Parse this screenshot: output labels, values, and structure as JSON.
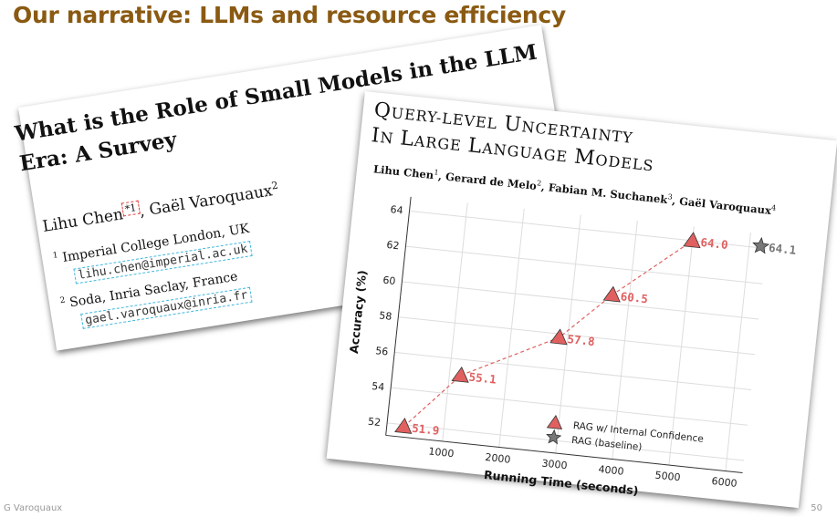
{
  "slide": {
    "title": "Our narrative: LLMs and resource efficiency",
    "footer_author": "G Varoquaux",
    "page_number": "50"
  },
  "paper1": {
    "title_line1": "What is the Role of Small Models in the LLM",
    "title_line2": "Era: A Survey",
    "author1": "Lihu Chen",
    "author1_mark": "*1",
    "author2": ", Gaël Varoquaux",
    "author2_mark": "2",
    "affiliations": [
      {
        "mark": "1",
        "name": "Imperial College London, UK",
        "email": "lihu.chen@imperial.ac.uk"
      },
      {
        "mark": "2",
        "name": "Soda, Inria Saclay, France",
        "email": "gael.varoquaux@inria.fr"
      }
    ]
  },
  "paper2": {
    "title_line1": "Query-Level Uncertainty",
    "title_line2": "in Large Language Models",
    "authors": [
      {
        "name": "Lihu Chen",
        "mark": "1",
        "sep": ", "
      },
      {
        "name": "Gerard de Melo",
        "mark": "2",
        "sep": ", "
      },
      {
        "name": "Fabian M. Suchanek",
        "mark": "3",
        "sep": ", "
      },
      {
        "name": "Gaël Varoquaux",
        "mark": "4",
        "sep": ""
      }
    ]
  },
  "chart_data": {
    "type": "scatter",
    "xlabel": "Running Time (seconds)",
    "ylabel": "Accuracy (%)",
    "xlim": [
      0,
      6300
    ],
    "ylim": [
      51.3,
      64.8
    ],
    "xticks": [
      1000,
      2000,
      3000,
      4000,
      5000,
      6000
    ],
    "yticks": [
      52,
      54,
      56,
      58,
      60,
      62,
      64
    ],
    "grid": true,
    "legend_position": "lower-right",
    "colors": {
      "confidence": "#e06060",
      "baseline": "#777777",
      "line": "#e06060"
    },
    "series": [
      {
        "name": "RAG w/ Internal Confidence",
        "marker": "triangle",
        "points": [
          {
            "x": 300,
            "y": 51.9,
            "label": "51.9"
          },
          {
            "x": 1200,
            "y": 55.1,
            "label": "55.1"
          },
          {
            "x": 2850,
            "y": 57.8,
            "label": "57.8"
          },
          {
            "x": 3700,
            "y": 60.5,
            "label": "60.5"
          },
          {
            "x": 5000,
            "y": 64.0,
            "label": "64.0"
          }
        ]
      },
      {
        "name": "RAG (baseline)",
        "marker": "star",
        "points": [
          {
            "x": 6200,
            "y": 64.1,
            "label": "64.1"
          }
        ]
      }
    ]
  }
}
